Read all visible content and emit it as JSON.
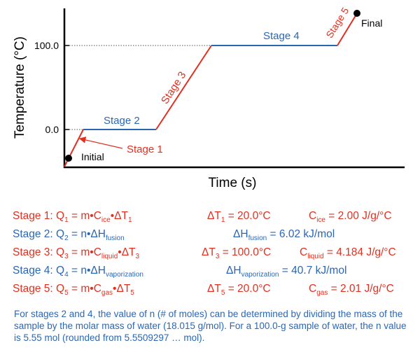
{
  "colors": {
    "red": "#e23020",
    "blue": "#2a66b6",
    "black": "#000000"
  },
  "chart_data": {
    "type": "line",
    "xlabel": "Time (s)",
    "ylabel": "Temperature (°C)",
    "y_ticks": [
      "100.0",
      "0.0"
    ],
    "stage_labels": [
      "Stage 1",
      "Stage 2",
      "Stage 3",
      "Stage 4",
      "Stage 5"
    ],
    "stage_colors": [
      "red",
      "blue",
      "red",
      "blue",
      "red"
    ],
    "annotations": {
      "initial": "Initial",
      "final": "Final"
    }
  },
  "equations": [
    {
      "stage": "Stage 1: ",
      "color": "red"
    },
    {
      "stage": "Stage 2: ",
      "color": "blue"
    },
    {
      "stage": "Stage 3: ",
      "color": "red"
    },
    {
      "stage": "Stage 4: ",
      "color": "blue"
    },
    {
      "stage": "Stage 5: ",
      "color": "red"
    }
  ],
  "t": {
    "Q": "Q",
    "eq": " = ",
    "m": "m",
    "n": "n",
    "dot": "•",
    "C": "C",
    "dT": "ΔT",
    "dH": "ΔH",
    "s1": "1",
    "s2": "2",
    "s3": "3",
    "s4": "4",
    "s5": "5",
    "ice": "ice",
    "liquid": "liquid",
    "gas": "gas",
    "fusion": "fusion",
    "vaporization": "vaporization",
    "dT1_val": " = 20.0°C",
    "dT3_val": " = 100.0°C",
    "dT5_val": " = 20.0°C",
    "c_ice_val": " = 2.00 J/g/°C",
    "c_liq_val": " = 4.184 J/g/°C",
    "c_gas_val": " = 2.01 J/g/°C",
    "h_fus_val": " = 6.02 kJ/mol",
    "h_vap_val": " = 40.7 kJ/mol"
  },
  "footnote": "For stages 2 and 4, the value of n (# of moles) can be determined by dividing the mass of the sample by the molar mass of water (18.015 g/mol). For a 100.0-g sample of water, the n value is 5.55 mol (rounded from 5.5509297 … mol)."
}
